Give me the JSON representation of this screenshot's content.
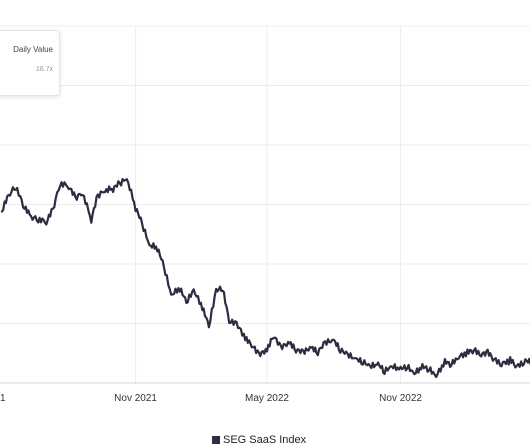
{
  "chart_data": {
    "type": "line",
    "tooltip": {
      "label": "Daily Value",
      "value": "18.7x"
    },
    "x_ticks": [
      {
        "label": "1",
        "date": "2021-05-01"
      },
      {
        "label": "Nov 2021",
        "date": "2021-11-01"
      },
      {
        "label": "May 2022",
        "date": "2022-05-01"
      },
      {
        "label": "Nov 2022",
        "date": "2022-11-01"
      }
    ],
    "xlim": [
      "2021-05-01",
      "2023-05-01"
    ],
    "ylim": [
      10,
      25
    ],
    "y_gridlines": [
      12.5,
      15,
      17.5,
      20,
      22.5,
      25
    ],
    "grid": true,
    "legend_position": "bottom",
    "series": [
      {
        "name": "SEG SaaS Index",
        "color": "#2e2c40",
        "points": [
          [
            "2021-05-01",
            17.2
          ],
          [
            "2021-05-10",
            17.8
          ],
          [
            "2021-05-20",
            18.2
          ],
          [
            "2021-05-30",
            17.4
          ],
          [
            "2021-06-10",
            16.9
          ],
          [
            "2021-06-20",
            16.8
          ],
          [
            "2021-07-01",
            16.7
          ],
          [
            "2021-07-10",
            17.2
          ],
          [
            "2021-07-20",
            18.3
          ],
          [
            "2021-08-01",
            18.2
          ],
          [
            "2021-08-10",
            17.7
          ],
          [
            "2021-08-20",
            17.9
          ],
          [
            "2021-09-01",
            16.8
          ],
          [
            "2021-09-10",
            17.8
          ],
          [
            "2021-09-20",
            18.0
          ],
          [
            "2021-10-01",
            18.1
          ],
          [
            "2021-10-10",
            18.3
          ],
          [
            "2021-10-20",
            18.5
          ],
          [
            "2021-11-01",
            17.3
          ],
          [
            "2021-11-10",
            16.6
          ],
          [
            "2021-11-20",
            15.7
          ],
          [
            "2021-12-01",
            15.6
          ],
          [
            "2021-12-10",
            14.8
          ],
          [
            "2021-12-20",
            13.6
          ],
          [
            "2022-01-01",
            13.9
          ],
          [
            "2022-01-10",
            13.3
          ],
          [
            "2022-01-20",
            13.8
          ],
          [
            "2022-02-01",
            13.1
          ],
          [
            "2022-02-10",
            12.3
          ],
          [
            "2022-02-20",
            13.8
          ],
          [
            "2022-03-01",
            13.9
          ],
          [
            "2022-03-10",
            12.5
          ],
          [
            "2022-03-20",
            12.4
          ],
          [
            "2022-04-01",
            11.8
          ],
          [
            "2022-04-10",
            11.5
          ],
          [
            "2022-04-20",
            11.1
          ],
          [
            "2022-05-01",
            11.3
          ],
          [
            "2022-05-10",
            11.9
          ],
          [
            "2022-05-20",
            11.4
          ],
          [
            "2022-06-01",
            11.6
          ],
          [
            "2022-06-10",
            11.3
          ],
          [
            "2022-06-20",
            11.2
          ],
          [
            "2022-07-01",
            11.4
          ],
          [
            "2022-07-10",
            11.2
          ],
          [
            "2022-07-20",
            11.6
          ],
          [
            "2022-08-01",
            11.7
          ],
          [
            "2022-08-10",
            11.3
          ],
          [
            "2022-08-20",
            11.1
          ],
          [
            "2022-09-01",
            10.9
          ],
          [
            "2022-09-10",
            10.8
          ],
          [
            "2022-09-20",
            10.6
          ],
          [
            "2022-10-01",
            10.7
          ],
          [
            "2022-10-10",
            10.4
          ],
          [
            "2022-10-20",
            10.6
          ],
          [
            "2022-11-01",
            10.5
          ],
          [
            "2022-11-10",
            10.6
          ],
          [
            "2022-11-20",
            10.3
          ],
          [
            "2022-12-01",
            10.6
          ],
          [
            "2022-12-10",
            10.5
          ],
          [
            "2022-12-20",
            10.2
          ],
          [
            "2023-01-01",
            10.8
          ],
          [
            "2023-01-10",
            10.7
          ],
          [
            "2023-01-20",
            11.0
          ],
          [
            "2023-02-01",
            11.2
          ],
          [
            "2023-02-10",
            11.3
          ],
          [
            "2023-02-20",
            11.1
          ],
          [
            "2023-03-01",
            11.2
          ],
          [
            "2023-03-10",
            10.9
          ],
          [
            "2023-03-20",
            10.7
          ],
          [
            "2023-04-01",
            10.9
          ],
          [
            "2023-04-10",
            10.6
          ],
          [
            "2023-04-20",
            10.8
          ],
          [
            "2023-05-01",
            10.9
          ]
        ]
      }
    ]
  }
}
